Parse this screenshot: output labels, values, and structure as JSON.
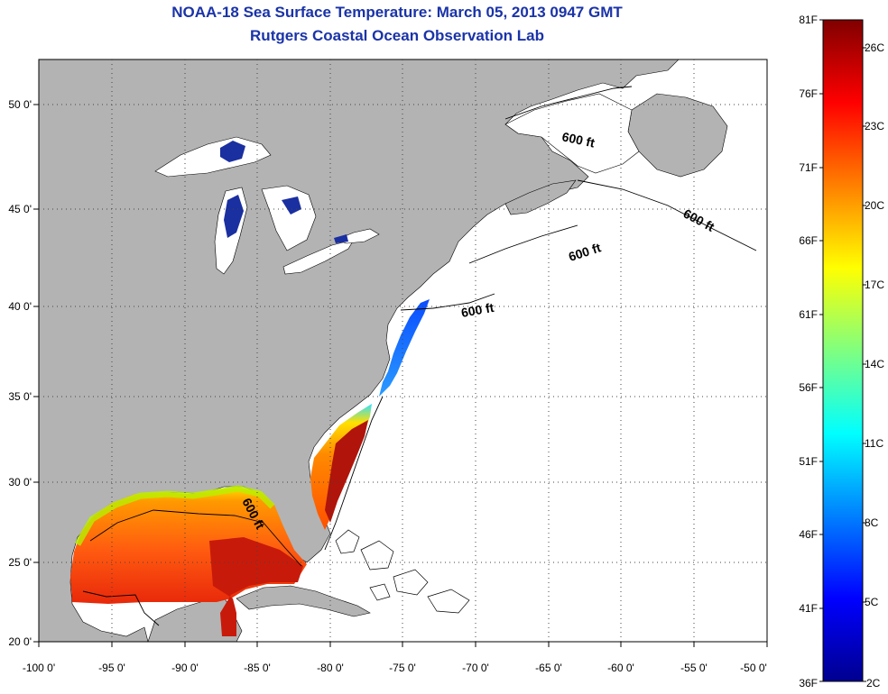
{
  "title": {
    "line1": "NOAA-18 Sea Surface Temperature:  March 05, 2013 0947 GMT",
    "line2": "Rutgers Coastal Ocean Observation Lab"
  },
  "map": {
    "lon_ticks": [
      "-100 0'",
      "-95 0'",
      "-90 0'",
      "-85 0'",
      "-80 0'",
      "-75 0'",
      "-70 0'",
      "-65 0'",
      "-60 0'",
      "-55 0'",
      "-50 0'"
    ],
    "lat_ticks": [
      "50 0'",
      "45 0'",
      "40 0'",
      "35 0'",
      "30 0'",
      "25 0'",
      "20 0'"
    ],
    "isobath_labels": [
      "600 ft",
      "600 ft",
      "600 ft",
      "600 ft",
      "600 ft"
    ],
    "colors": {
      "land": "#b3b3b3",
      "ocean_no_data": "#ffffff",
      "lakes": "#1a2fa0",
      "grid": "#555555"
    }
  },
  "colorbar": {
    "f_labels": [
      "81F",
      "76F",
      "71F",
      "66F",
      "61F",
      "56F",
      "51F",
      "46F",
      "41F",
      "36F"
    ],
    "c_labels": [
      "26C",
      "23C",
      "20C",
      "17C",
      "14C",
      "11C",
      "8C",
      "5C",
      "2C"
    ],
    "colormap": "jet"
  }
}
